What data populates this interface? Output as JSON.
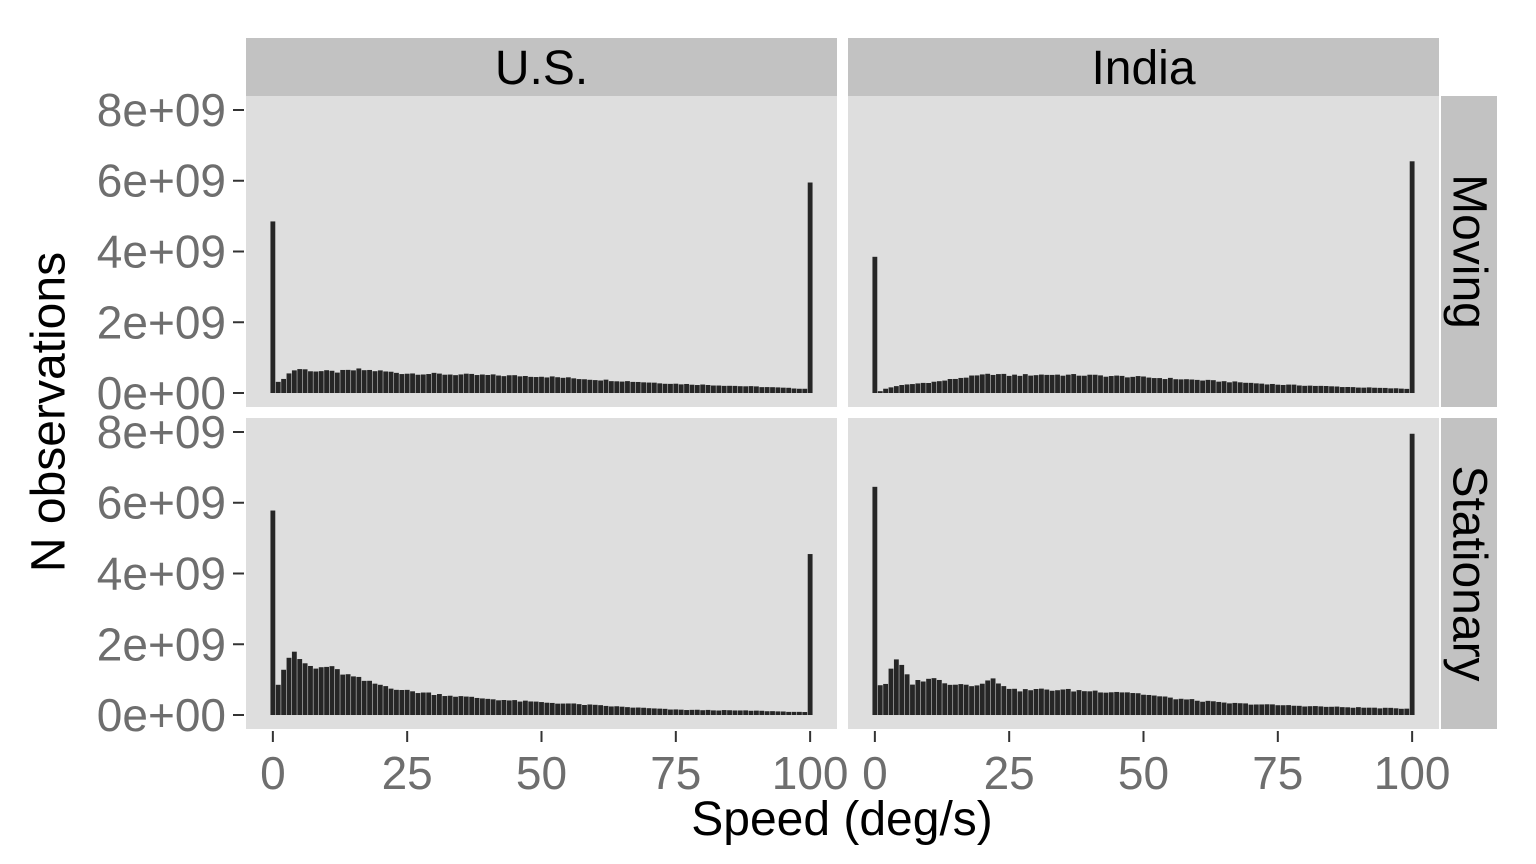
{
  "chart_data": {
    "type": "bar",
    "title": "",
    "xlabel": "Speed (deg/s)",
    "ylabel": "N observations",
    "xlim": [
      -5,
      105
    ],
    "ylim": [
      0,
      8000000000
    ],
    "xticks": [
      0,
      25,
      50,
      75,
      100
    ],
    "xtick_labels": [
      "0",
      "25",
      "50",
      "75",
      "100"
    ],
    "yticks": [
      0,
      2000000000,
      4000000000,
      6000000000,
      8000000000
    ],
    "ytick_labels": [
      "0e+00",
      "2e+09",
      "4e+09",
      "6e+09",
      "8e+09"
    ],
    "bin_width": 1,
    "grid": false,
    "facet_columns": [
      "U.S.",
      "India"
    ],
    "facet_rows": [
      "Moving",
      "Stationary"
    ],
    "colors": {
      "bar": "#262626",
      "panel": "#dedede",
      "strip": "#c2c2c2",
      "tick_text": "#6e6e6e"
    },
    "panels": [
      {
        "column": "U.S.",
        "row": "Moving",
        "x": [
          0,
          100
        ],
        "values": [
          4850000000,
          5950000000
        ],
        "profile": [
          [
            1,
            300000000
          ],
          [
            2,
            420000000
          ],
          [
            3,
            550000000
          ],
          [
            4,
            650000000
          ],
          [
            5,
            680000000
          ],
          [
            8,
            620000000
          ],
          [
            12,
            600000000
          ],
          [
            16,
            660000000
          ],
          [
            20,
            620000000
          ],
          [
            24,
            560000000
          ],
          [
            35,
            520000000
          ],
          [
            50,
            470000000
          ],
          [
            60,
            380000000
          ],
          [
            75,
            260000000
          ],
          [
            90,
            180000000
          ],
          [
            99,
            120000000
          ]
        ]
      },
      {
        "column": "India",
        "row": "Moving",
        "x": [
          0,
          100
        ],
        "values": [
          3850000000,
          6550000000
        ],
        "profile": [
          [
            1,
            50000000
          ],
          [
            2,
            120000000
          ],
          [
            4,
            200000000
          ],
          [
            8,
            270000000
          ],
          [
            12,
            330000000
          ],
          [
            16,
            430000000
          ],
          [
            22,
            540000000
          ],
          [
            25,
            500000000
          ],
          [
            32,
            520000000
          ],
          [
            40,
            500000000
          ],
          [
            48,
            460000000
          ],
          [
            60,
            370000000
          ],
          [
            75,
            240000000
          ],
          [
            90,
            160000000
          ],
          [
            99,
            120000000
          ]
        ]
      },
      {
        "column": "U.S.",
        "row": "Stationary",
        "x": [
          0,
          100
        ],
        "values": [
          5780000000,
          4550000000
        ],
        "profile": [
          [
            1,
            900000000
          ],
          [
            2,
            1300000000
          ],
          [
            3,
            1650000000
          ],
          [
            4,
            1700000000
          ],
          [
            6,
            1450000000
          ],
          [
            8,
            1300000000
          ],
          [
            10,
            1380000000
          ],
          [
            14,
            1120000000
          ],
          [
            18,
            920000000
          ],
          [
            25,
            680000000
          ],
          [
            35,
            520000000
          ],
          [
            45,
            400000000
          ],
          [
            55,
            320000000
          ],
          [
            65,
            230000000
          ],
          [
            75,
            150000000
          ],
          [
            90,
            120000000
          ],
          [
            99,
            80000000
          ]
        ]
      },
      {
        "column": "India",
        "row": "Stationary",
        "x": [
          0,
          100
        ],
        "values": [
          6450000000,
          7950000000
        ],
        "profile": [
          [
            1,
            850000000
          ],
          [
            2,
            900000000
          ],
          [
            3,
            1250000000
          ],
          [
            4,
            1550000000
          ],
          [
            5,
            1350000000
          ],
          [
            7,
            900000000
          ],
          [
            10,
            1050000000
          ],
          [
            14,
            900000000
          ],
          [
            18,
            850000000
          ],
          [
            22,
            1000000000
          ],
          [
            26,
            700000000
          ],
          [
            32,
            720000000
          ],
          [
            40,
            680000000
          ],
          [
            47,
            650000000
          ],
          [
            55,
            480000000
          ],
          [
            65,
            340000000
          ],
          [
            75,
            280000000
          ],
          [
            85,
            230000000
          ],
          [
            99,
            180000000
          ]
        ]
      }
    ]
  }
}
